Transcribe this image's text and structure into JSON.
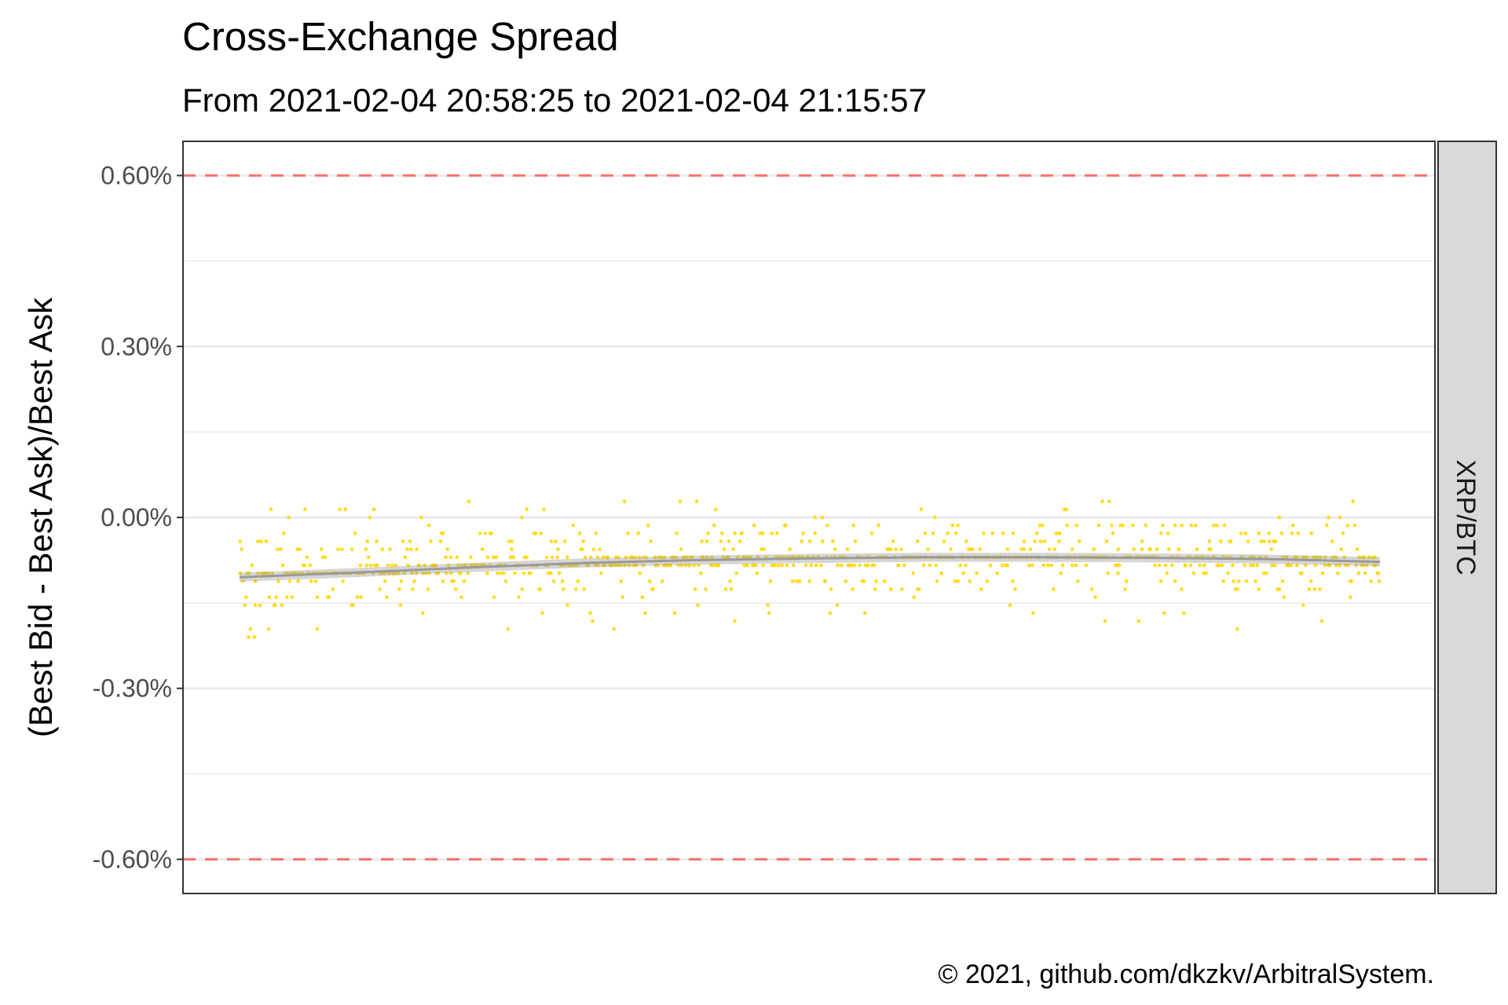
{
  "chart_data": {
    "type": "scatter",
    "title": "Cross-Exchange Spread",
    "subtitle": "From 2021-02-04 20:58:25 to 2021-02-04 21:15:57",
    "xlabel": "",
    "ylabel": "(Best Bid - Best Ask)/Best Ask",
    "x_range": [
      "2021-02-04 20:58:25",
      "2021-02-04 21:15:57"
    ],
    "ylim": [
      -0.66,
      0.66
    ],
    "y_ticks": [
      {
        "value": 0.6,
        "label": "0.60%"
      },
      {
        "value": 0.3,
        "label": "0.30%"
      },
      {
        "value": 0.0,
        "label": "0.00%"
      },
      {
        "value": -0.3,
        "label": "-0.30%"
      },
      {
        "value": -0.6,
        "label": "-0.60%"
      }
    ],
    "y_unit": "%",
    "facet_label": "XRP/BTC",
    "grid": true,
    "point_color": "#FFD700",
    "smooth_color": "#9a9a9a",
    "threshold_color": "#F8766D",
    "thresholds": [
      0.6,
      -0.6
    ],
    "n_points_approx": 900,
    "observed_range": {
      "min": -0.27,
      "max": 0.11
    },
    "trend": [
      {
        "t": 0.0,
        "y": -0.105
      },
      {
        "t": 0.1,
        "y": -0.097
      },
      {
        "t": 0.2,
        "y": -0.088
      },
      {
        "t": 0.3,
        "y": -0.08
      },
      {
        "t": 0.4,
        "y": -0.075
      },
      {
        "t": 0.5,
        "y": -0.072
      },
      {
        "t": 0.6,
        "y": -0.07
      },
      {
        "t": 0.7,
        "y": -0.07
      },
      {
        "t": 0.8,
        "y": -0.071
      },
      {
        "t": 0.9,
        "y": -0.073
      },
      {
        "t": 1.0,
        "y": -0.078
      }
    ],
    "band_halfwidth": 0.008
  },
  "caption": "© 2021, github.com/dkzkv/ArbitralSystem."
}
